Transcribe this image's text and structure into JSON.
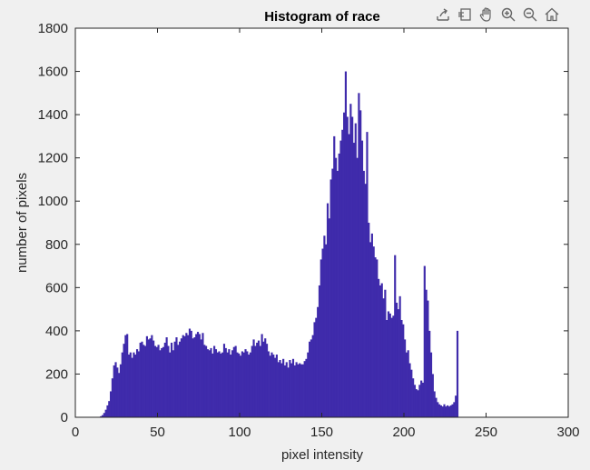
{
  "toolbar": {
    "items": [
      {
        "name": "export-icon"
      },
      {
        "name": "brush-icon"
      },
      {
        "name": "pan-hand-icon"
      },
      {
        "name": "zoom-in-icon"
      },
      {
        "name": "zoom-out-icon"
      },
      {
        "name": "home-icon"
      }
    ]
  },
  "chart_data": {
    "type": "bar",
    "title": "Histogram of race",
    "xlabel": "pixel intensity",
    "ylabel": "number of pixels",
    "xlim": [
      0,
      300
    ],
    "ylim": [
      0,
      1800
    ],
    "xticks": [
      "0",
      "50",
      "100",
      "150",
      "200",
      "250",
      "300"
    ],
    "yticks": [
      "0",
      "200",
      "400",
      "600",
      "800",
      "1000",
      "1200",
      "1400",
      "1600",
      "1800"
    ],
    "grid": false,
    "color": "#3f2bab",
    "bin_start": 0,
    "values": [
      0,
      0,
      0,
      0,
      0,
      0,
      0,
      0,
      0,
      0,
      0,
      0,
      0,
      0,
      0,
      5,
      10,
      20,
      35,
      55,
      75,
      120,
      180,
      240,
      255,
      230,
      205,
      245,
      300,
      340,
      380,
      385,
      290,
      300,
      275,
      300,
      290,
      315,
      305,
      345,
      350,
      335,
      330,
      375,
      360,
      365,
      380,
      355,
      330,
      325,
      335,
      310,
      320,
      325,
      345,
      370,
      330,
      300,
      345,
      310,
      350,
      370,
      335,
      350,
      365,
      380,
      375,
      390,
      380,
      410,
      400,
      365,
      370,
      385,
      395,
      385,
      360,
      390,
      335,
      330,
      315,
      310,
      320,
      295,
      330,
      315,
      300,
      305,
      295,
      300,
      340,
      320,
      300,
      315,
      290,
      310,
      325,
      330,
      300,
      295,
      285,
      305,
      300,
      315,
      305,
      290,
      300,
      330,
      360,
      330,
      345,
      355,
      330,
      385,
      350,
      365,
      340,
      305,
      285,
      300,
      290,
      275,
      290,
      255,
      265,
      250,
      270,
      240,
      255,
      230,
      265,
      250,
      270,
      240,
      255,
      245,
      250,
      245,
      245,
      260,
      270,
      300,
      350,
      360,
      380,
      440,
      460,
      510,
      610,
      730,
      780,
      840,
      800,
      990,
      920,
      1100,
      1150,
      1300,
      1200,
      1140,
      1220,
      1280,
      1330,
      1410,
      1600,
      1390,
      1310,
      1450,
      1390,
      1270,
      1360,
      1200,
      1500,
      1420,
      1280,
      1140,
      1080,
      1320,
      900,
      810,
      850,
      790,
      740,
      730,
      640,
      610,
      620,
      550,
      590,
      450,
      490,
      480,
      460,
      470,
      750,
      530,
      500,
      560,
      450,
      430,
      360,
      300,
      310,
      250,
      220,
      180,
      150,
      130,
      125,
      150,
      170,
      160,
      700,
      590,
      540,
      400,
      300,
      200,
      120,
      90,
      70,
      60,
      55,
      50,
      60,
      50,
      55,
      50,
      55,
      60,
      70,
      100,
      400
    ]
  }
}
